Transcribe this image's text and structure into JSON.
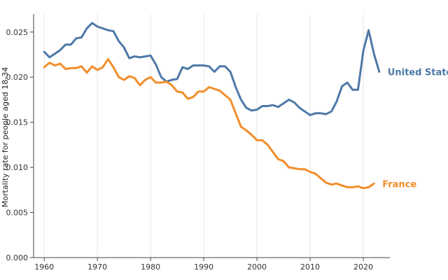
{
  "chart_data": {
    "type": "line",
    "title": "",
    "xlabel": "",
    "ylabel": "Mortality rate for people aged 18-34",
    "xlim": [
      1958,
      2025
    ],
    "ylim": [
      0,
      0.027
    ],
    "x_ticks": [
      "1960",
      "1970",
      "1980",
      "1990",
      "2000",
      "2010",
      "2020"
    ],
    "x_tick_values": [
      1960,
      1970,
      1980,
      1990,
      2000,
      2010,
      2020
    ],
    "y_ticks": [
      "0.000",
      "0.005",
      "0.010",
      "0.015",
      "0.020",
      "0.025"
    ],
    "y_tick_values": [
      0,
      0.005,
      0.01,
      0.015,
      0.02,
      0.025
    ],
    "grid": "vertical",
    "series": [
      {
        "name": "United States",
        "color": "#4e79a7",
        "x": [
          1960,
          1961,
          1962,
          1963,
          1964,
          1965,
          1966,
          1967,
          1968,
          1969,
          1970,
          1971,
          1972,
          1973,
          1974,
          1975,
          1976,
          1977,
          1978,
          1979,
          1980,
          1981,
          1982,
          1983,
          1984,
          1985,
          1986,
          1987,
          1988,
          1989,
          1990,
          1991,
          1992,
          1993,
          1994,
          1995,
          1996,
          1997,
          1998,
          1999,
          2000,
          2001,
          2002,
          2003,
          2004,
          2005,
          2006,
          2007,
          2008,
          2009,
          2010,
          2011,
          2012,
          2013,
          2014,
          2015,
          2016,
          2017,
          2018,
          2019,
          2020,
          2021,
          2022,
          2023
        ],
        "values": [
          0.0228,
          0.0222,
          0.0226,
          0.023,
          0.0236,
          0.0236,
          0.0243,
          0.0244,
          0.0254,
          0.026,
          0.0256,
          0.0254,
          0.0252,
          0.0251,
          0.024,
          0.0233,
          0.0221,
          0.0223,
          0.0222,
          0.0223,
          0.0224,
          0.0214,
          0.02,
          0.0195,
          0.0197,
          0.0198,
          0.0211,
          0.0209,
          0.0213,
          0.0213,
          0.0213,
          0.0212,
          0.0206,
          0.0212,
          0.0212,
          0.0206,
          0.0189,
          0.0175,
          0.0166,
          0.0163,
          0.0164,
          0.0168,
          0.0168,
          0.0169,
          0.0167,
          0.0171,
          0.0175,
          0.0172,
          0.0166,
          0.0162,
          0.0158,
          0.016,
          0.016,
          0.0159,
          0.0162,
          0.0173,
          0.019,
          0.0194,
          0.0186,
          0.0186,
          0.0229,
          0.0252,
          0.0226,
          0.0206
        ]
      },
      {
        "name": "France",
        "color": "#f28e2b",
        "x": [
          1960,
          1961,
          1962,
          1963,
          1964,
          1965,
          1966,
          1967,
          1968,
          1969,
          1970,
          1971,
          1972,
          1973,
          1974,
          1975,
          1976,
          1977,
          1978,
          1979,
          1980,
          1981,
          1982,
          1983,
          1984,
          1985,
          1986,
          1987,
          1988,
          1989,
          1990,
          1991,
          1992,
          1993,
          1994,
          1995,
          1996,
          1997,
          1998,
          1999,
          2000,
          2001,
          2002,
          2003,
          2004,
          2005,
          2006,
          2007,
          2008,
          2009,
          2010,
          2011,
          2012,
          2013,
          2014,
          2015,
          2016,
          2017,
          2018,
          2019,
          2020,
          2021,
          2022
        ],
        "values": [
          0.0211,
          0.0216,
          0.0213,
          0.0215,
          0.0209,
          0.021,
          0.021,
          0.0212,
          0.0205,
          0.0212,
          0.0208,
          0.0211,
          0.022,
          0.0211,
          0.02,
          0.0197,
          0.0201,
          0.0199,
          0.0191,
          0.0197,
          0.02,
          0.0194,
          0.0194,
          0.0195,
          0.0191,
          0.0184,
          0.0183,
          0.0176,
          0.0178,
          0.0184,
          0.0184,
          0.0189,
          0.0187,
          0.0185,
          0.018,
          0.0175,
          0.016,
          0.0145,
          0.0141,
          0.0136,
          0.013,
          0.013,
          0.0125,
          0.0117,
          0.0109,
          0.0107,
          0.01,
          0.0099,
          0.0098,
          0.0098,
          0.0095,
          0.0093,
          0.0088,
          0.0083,
          0.0081,
          0.0082,
          0.008,
          0.0078,
          0.0078,
          0.0079,
          0.0077,
          0.0078,
          0.0082
        ]
      }
    ]
  }
}
